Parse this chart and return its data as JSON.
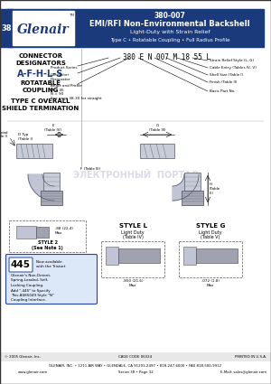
{
  "title_number": "380-007",
  "title_line1": "EMI/RFI Non-Environmental Backshell",
  "title_line2": "Light-Duty with Strain Relief",
  "title_line3": "Type C • Rotatable Coupling • Full Radius Profile",
  "header_bg": "#1a3a7c",
  "header_text_color": "#ffffff",
  "logo_text": "Glenair",
  "logo_bg": "#ffffff",
  "series_tab_text": "38",
  "connector_designators": "A-F-H-L-S",
  "connector_label1": "CONNECTOR",
  "connector_label2": "DESIGNATORS",
  "connector_label3": "ROTATABLE",
  "connector_label4": "COUPLING",
  "connector_label5": "TYPE C OVERALL",
  "connector_label6": "SHIELD TERMINATION",
  "partnumber_display": "380 E N 007 M 18 55 L",
  "style2_dim1": ".88 (22.4)",
  "style2_dim2": "Max",
  "style_l_title": "STYLE L",
  "style_l_sub1": "Light Duty",
  "style_l_sub2": "(Table IV)",
  "style_l_dim": ".850 (21.6)\nMax",
  "style_g_title": "STYLE G",
  "style_g_sub1": "Light Duty",
  "style_g_sub2": "(Table V)",
  "style_g_dim": ".072 (1.8)\nMax",
  "note_number": "445",
  "note_text1": "Now available",
  "note_text2": "with the Tristart",
  "note_body_lines": [
    "Glenair's Non-Detent,",
    "Spring-Loaded, Self-",
    "Locking Coupling.",
    "Add \"-445\" to Specify",
    "This AS85049 Style \"N\"",
    "Coupling Interface."
  ],
  "watermark_text": "ЭЛЕКТРОННЫЙ  ПОРТАЛ",
  "footer_company": "GLENAIR, INC. • 1211 AIR WAY • GLENDALE, CA 91201-2497 • 818-247-6000 • FAX 818-500-9912",
  "footer_web": "www.glenair.com",
  "footer_series": "Series 38 • Page 32",
  "footer_email": "E-Mail: sales@glenair.com",
  "copyright": "© 2005 Glenair, Inc.",
  "cage_code": "CAGE CODE 06324",
  "printed": "PRINTED IN U.S.A.",
  "bg_color": "#ffffff",
  "header_bg_color": "#1a3a7c",
  "pn_right_labels": [
    "Strain Relief Style (L, G)",
    "Cable Entry (Tables IV, V)",
    "Shell Size (Table I)",
    "Finish (Table II)"
  ],
  "pn_left_labels": [
    "Product Series",
    "Connector\nDesignator",
    "Angle and Profile\nM = 45\nN = 90\nSee page 38-30 for straight"
  ],
  "pn_bottom_label": "Basic Part No."
}
